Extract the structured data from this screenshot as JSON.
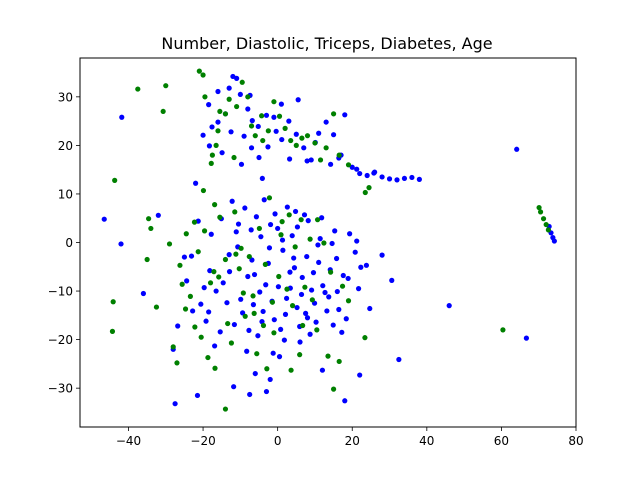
{
  "chart_data": {
    "type": "scatter",
    "title": "Number, Diastolic, Triceps, Diabetes, Age",
    "xlabel": "",
    "ylabel": "",
    "xlim": [
      -53,
      80
    ],
    "ylim": [
      -38,
      38
    ],
    "x_ticks": [
      -40,
      -20,
      0,
      20,
      40,
      60,
      80
    ],
    "y_ticks": [
      -30,
      -20,
      -10,
      0,
      10,
      20,
      30
    ],
    "grid": false,
    "legend": "none",
    "series": [
      {
        "color": "#0000ff",
        "points": [
          [
            -46.5,
            4.8
          ],
          [
            -42,
            -0.3
          ],
          [
            -41.8,
            25.8
          ],
          [
            -36,
            -10.5
          ],
          [
            -32,
            5.6
          ],
          [
            -28,
            -22
          ],
          [
            -27.5,
            -33.2
          ],
          [
            -25,
            -3
          ],
          [
            -22.8,
            -14.1
          ],
          [
            -22,
            12.2
          ],
          [
            -21.5,
            -31.5
          ],
          [
            -20,
            22.1
          ],
          [
            -18.5,
            28.4
          ],
          [
            -17.6,
            23.8
          ],
          [
            -13,
            31.8
          ],
          [
            -12,
            34.2
          ],
          [
            -11,
            33.8
          ],
          [
            -10,
            30.5
          ],
          [
            -8,
            27.5
          ],
          [
            -14,
            26.5
          ],
          [
            -16,
            24.8
          ],
          [
            -12.5,
            22.8
          ],
          [
            -9,
            21.9
          ],
          [
            -7,
            19.5
          ],
          [
            -5,
            17.5
          ],
          [
            -3,
            26.2
          ],
          [
            -1,
            25.8
          ],
          [
            1,
            28.5
          ],
          [
            3,
            25
          ],
          [
            5,
            22.3
          ],
          [
            7,
            19.5
          ],
          [
            9,
            17
          ],
          [
            11,
            22.5
          ],
          [
            13,
            24.8
          ],
          [
            15,
            22.2
          ],
          [
            17,
            18
          ],
          [
            18,
            26.3
          ],
          [
            20,
            15.5
          ],
          [
            22,
            14.2
          ],
          [
            24,
            13.8
          ],
          [
            26,
            14.5
          ],
          [
            28,
            13.5
          ],
          [
            30,
            13.1
          ],
          [
            32,
            12.9
          ],
          [
            34,
            13.2
          ],
          [
            36,
            13.4
          ],
          [
            38,
            13
          ],
          [
            -11.8,
            -29.7
          ],
          [
            -7.5,
            -31.3
          ],
          [
            -3,
            -30.7
          ],
          [
            18,
            -32.6
          ],
          [
            -6,
            -27
          ],
          [
            -2,
            -28.2
          ],
          [
            0.5,
            -23.5
          ],
          [
            6,
            -20.5
          ],
          [
            12,
            -26.3
          ],
          [
            22,
            -27.3
          ],
          [
            46,
            -13
          ],
          [
            64.1,
            19.2
          ],
          [
            66.7,
            -19.7
          ],
          [
            32.5,
            -24.1
          ],
          [
            72.8,
            3.3
          ],
          [
            73.3,
            2
          ],
          [
            73.8,
            1
          ],
          [
            74.2,
            0.3
          ],
          [
            -19.2,
            -16.2
          ],
          [
            -16.5,
            -10
          ],
          [
            -13,
            -2.5
          ],
          [
            -10.5,
            3.8
          ],
          [
            -8,
            -7
          ],
          [
            -6.5,
            -12.8
          ],
          [
            -4.5,
            1.2
          ],
          [
            -2.5,
            -4.3
          ],
          [
            -0.7,
            5.9
          ],
          [
            1.4,
            -1.6
          ],
          [
            3.4,
            -9.4
          ],
          [
            5.3,
            3.2
          ],
          [
            7.5,
            -14.6
          ],
          [
            9.6,
            -6.2
          ],
          [
            11.4,
            0.8
          ],
          [
            13.7,
            -11.2
          ],
          [
            15.8,
            -3.3
          ],
          [
            17.2,
            -18.5
          ],
          [
            19.3,
            1.8
          ],
          [
            21.7,
            -9.5
          ],
          [
            23.8,
            -4.7
          ],
          [
            28,
            -2.6
          ],
          [
            30.6,
            -7.8
          ],
          [
            -21.3,
            4.4
          ],
          [
            -18.2,
            -5.8
          ],
          [
            -15.4,
            -18.4
          ],
          [
            -12.2,
            8.5
          ],
          [
            -9.4,
            -14.5
          ],
          [
            -7.1,
            2.6
          ],
          [
            -5.3,
            -19.2
          ],
          [
            -3.6,
            8.8
          ],
          [
            -1.5,
            -12.1
          ],
          [
            0.8,
            -17.9
          ],
          [
            2.6,
            7.3
          ],
          [
            4.5,
            -5.2
          ],
          [
            6.4,
            -10.7
          ],
          [
            8.2,
            4.5
          ],
          [
            10.3,
            -16.4
          ],
          [
            12.1,
            -8.9
          ],
          [
            14.6,
            -0.2
          ],
          [
            16.4,
            -13.8
          ],
          [
            18.9,
            -7.4
          ],
          [
            20.8,
            -2
          ],
          [
            24.7,
            -13.6
          ],
          [
            -24.4,
            -7.9
          ],
          [
            -20.6,
            -12.7
          ],
          [
            -17.8,
            1.7
          ],
          [
            -14.6,
            -8.3
          ],
          [
            -11.6,
            -16.9
          ],
          [
            -8.8,
            7.1
          ],
          [
            -6.2,
            -6.6
          ],
          [
            -3.9,
            -14.2
          ],
          [
            -1.9,
            3.7
          ],
          [
            0.2,
            -9.1
          ],
          [
            2.1,
            -14.8
          ],
          [
            3.9,
            1.4
          ],
          [
            5.9,
            -17.3
          ],
          [
            7.8,
            -2.9
          ],
          [
            9.9,
            -12.5
          ],
          [
            11.8,
            5.1
          ],
          [
            14.1,
            -5.6
          ],
          [
            16,
            -10.1
          ],
          [
            18.4,
            -15.7
          ],
          [
            22.3,
            -5.1
          ],
          [
            -16.9,
            -21.3
          ],
          [
            -13.6,
            -12.4
          ],
          [
            -10.7,
            -0.9
          ],
          [
            -7.7,
            -18.1
          ],
          [
            -5.7,
            5.3
          ],
          [
            -3.2,
            -8.7
          ],
          [
            -0.9,
            -15.9
          ],
          [
            1.3,
            0.5
          ],
          [
            3.3,
            -6.1
          ],
          [
            5.2,
            -13.4
          ],
          [
            7.2,
            5.7
          ],
          [
            9.1,
            -9.8
          ],
          [
            11,
            -4.1
          ],
          [
            13.2,
            -14.1
          ],
          [
            15.3,
            2.4
          ],
          [
            17.6,
            -6.8
          ],
          [
            -26.8,
            -17.2
          ],
          [
            -23.1,
            -2.8
          ],
          [
            -19.7,
            -9.3
          ],
          [
            -15.1,
            4.9
          ],
          [
            -12.9,
            -6
          ],
          [
            -9.9,
            -11.7
          ],
          [
            -6.9,
            -3.6
          ],
          [
            -4.2,
            -16.3
          ],
          [
            -2.2,
            -1.1
          ],
          [
            0,
            2.9
          ],
          [
            2.4,
            -11.5
          ],
          [
            4.3,
            -3.2
          ],
          [
            6.6,
            -7.2
          ],
          [
            8.7,
            -18.9
          ],
          [
            10.8,
            -0.5
          ],
          [
            12.7,
            -10.3
          ],
          [
            14.9,
            -17
          ],
          [
            -18.5,
            -14.3
          ],
          [
            -11.1,
            2.2
          ],
          [
            -4.8,
            -10.2
          ],
          [
            1.8,
            -20.1
          ],
          [
            8,
            -15.5
          ],
          [
            21.2,
            0.3
          ],
          [
            -8.3,
            -22.4
          ],
          [
            -1.2,
            -22.8
          ],
          [
            4.8,
            6.4
          ],
          [
            -4.1,
            13.2
          ],
          [
            -6.8,
            25.1
          ],
          [
            1.1,
            21.2
          ],
          [
            7.9,
            16.8
          ],
          [
            14.2,
            16.1
          ],
          [
            -9.7,
            16.1
          ],
          [
            -14.9,
            18.5
          ],
          [
            -2.6,
            19.7
          ],
          [
            5.5,
            29.4
          ],
          [
            3.2,
            17.2
          ],
          [
            -0.4,
            22.9
          ],
          [
            -7.4,
            30.3
          ],
          [
            21.2,
            15.1
          ],
          [
            25.8,
            14.3
          ],
          [
            16.4,
            17.4
          ],
          [
            10.1,
            20.6
          ],
          [
            -18.3,
            19.9
          ],
          [
            -16,
            31.1
          ],
          [
            -5.2,
            23.9
          ]
        ]
      },
      {
        "color": "#008000",
        "points": [
          [
            -43.7,
            12.8
          ],
          [
            -44.1,
            -12.2
          ],
          [
            -44.3,
            -18.3
          ],
          [
            -37.5,
            31.6
          ],
          [
            -35,
            -3.5
          ],
          [
            -34.6,
            4.9
          ],
          [
            -34,
            2.9
          ],
          [
            -32.5,
            -13.3
          ],
          [
            -30.7,
            27
          ],
          [
            -30,
            32.3
          ],
          [
            -29,
            -0.3
          ],
          [
            -28,
            -21.5
          ],
          [
            -27,
            -24.8
          ],
          [
            -24.5,
            1.8
          ],
          [
            -22.3,
            4.2
          ],
          [
            -21,
            35.3
          ],
          [
            -20,
            34.5
          ],
          [
            -19.5,
            30
          ],
          [
            -17.5,
            18
          ],
          [
            -16.5,
            20
          ],
          [
            -16,
            23
          ],
          [
            -15.5,
            27
          ],
          [
            -14,
            26.5
          ],
          [
            -13,
            29.5
          ],
          [
            -11,
            28
          ],
          [
            -9.5,
            33
          ],
          [
            -8,
            30
          ],
          [
            -7,
            24
          ],
          [
            -6,
            22
          ],
          [
            -4,
            21
          ],
          [
            -2.5,
            23
          ],
          [
            -1,
            29
          ],
          [
            0.5,
            26
          ],
          [
            2,
            23.5
          ],
          [
            3.5,
            21
          ],
          [
            5,
            20
          ],
          [
            6.5,
            21.5
          ],
          [
            8,
            22
          ],
          [
            10,
            20.5
          ],
          [
            11.5,
            17
          ],
          [
            13,
            19.5
          ],
          [
            15,
            26.5
          ],
          [
            16.5,
            18
          ],
          [
            19,
            16
          ],
          [
            23.5,
            10.3
          ],
          [
            24.5,
            11.3
          ],
          [
            -17.8,
            16.3
          ],
          [
            -11.7,
            17.5
          ],
          [
            -15.5,
            5.2
          ],
          [
            -11.5,
            6.3
          ],
          [
            -14,
            -3.5
          ],
          [
            -9.8,
            -1.2
          ],
          [
            -6.6,
            -11
          ],
          [
            -3.3,
            -4.5
          ],
          [
            -1.4,
            -12.3
          ],
          [
            1.2,
            4.3
          ],
          [
            2.5,
            -9.6
          ],
          [
            4.7,
            -0.9
          ],
          [
            6.7,
            -17.1
          ],
          [
            9.3,
            -11.8
          ],
          [
            10.7,
            4.7
          ],
          [
            12.4,
            -0.1
          ],
          [
            14.2,
            -6.1
          ],
          [
            17.4,
            -9
          ],
          [
            19,
            -12
          ],
          [
            23.4,
            -19.6
          ],
          [
            -18.7,
            -23.7
          ],
          [
            -16.8,
            -25.9
          ],
          [
            -14,
            -34.3
          ],
          [
            -15.8,
            -7.1
          ],
          [
            -12.4,
            -20.7
          ],
          [
            -8.7,
            -15.2
          ],
          [
            -5.6,
            -22.9
          ],
          [
            -2.9,
            -26
          ],
          [
            -1,
            -18.6
          ],
          [
            3.6,
            -26.3
          ],
          [
            5.9,
            -23.1
          ],
          [
            10.5,
            -18
          ],
          [
            13.5,
            -23.4
          ],
          [
            15,
            -30.2
          ],
          [
            16.5,
            -24.5
          ],
          [
            -22.2,
            -17.4
          ],
          [
            -24.7,
            -13.7
          ],
          [
            -26.2,
            -4.7
          ],
          [
            -21.3,
            -1.9
          ],
          [
            -19.6,
            2.4
          ],
          [
            -17.1,
            -6
          ],
          [
            -13.4,
            -16.7
          ],
          [
            -10.3,
            -5.4
          ],
          [
            -7.6,
            -2.9
          ],
          [
            -4.9,
            2.9
          ],
          [
            -2.2,
            9.2
          ],
          [
            0.9,
            1.6
          ],
          [
            3.1,
            5.7
          ],
          [
            6.3,
            4.7
          ],
          [
            8.7,
            0.7
          ],
          [
            -19.9,
            10.7
          ],
          [
            -16.9,
            7.8
          ],
          [
            -23.4,
            -11.1
          ],
          [
            -20.5,
            -19.5
          ],
          [
            60.4,
            -18
          ],
          [
            70.1,
            7.2
          ],
          [
            70.5,
            6.3
          ],
          [
            71.3,
            4.9
          ],
          [
            72,
            3.7
          ],
          [
            72.6,
            2.6
          ],
          [
            -25.6,
            -8.6
          ],
          [
            -18,
            -8.3
          ],
          [
            -9.2,
            -10.4
          ],
          [
            0.3,
            -7
          ],
          [
            7.3,
            -9.2
          ],
          [
            -3.8,
            -17.1
          ],
          [
            4,
            -13
          ],
          [
            -6.3,
            -14.6
          ],
          [
            -11.2,
            -2.4
          ],
          [
            -4.3,
            26.1
          ]
        ]
      }
    ]
  }
}
